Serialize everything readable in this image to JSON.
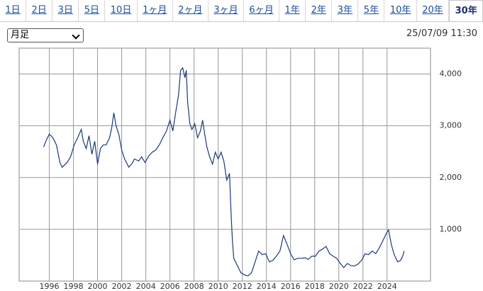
{
  "tabs": [
    "1日",
    "2日",
    "3日",
    "5日",
    "10日",
    "1ヶ月",
    "2ヶ月",
    "3ヶ月",
    "6ヶ月",
    "1年",
    "2年",
    "3年",
    "5年",
    "10年",
    "20年",
    "30年"
  ],
  "selected_tab": 15,
  "select": "月足",
  "timestamp": "25/07/09 11:30",
  "chart_data": {
    "type": "line",
    "color": "#1b3a7a",
    "grid": true,
    "xlim": [
      1993.5,
      2027.6
    ],
    "xticks": [
      1996,
      1998,
      2000,
      2002,
      2004,
      2006,
      2008,
      2010,
      2012,
      2014,
      2016,
      2018,
      2020,
      2022,
      2024
    ],
    "ylim": [
      0,
      4500
    ],
    "yticks": [
      {
        "value": 1000,
        "label": "1,000"
      },
      {
        "value": 2000,
        "label": "2,000"
      },
      {
        "value": 3000,
        "label": "3,000"
      },
      {
        "value": 4000,
        "label": "4,000"
      }
    ],
    "x": [
      1995.53,
      1995.71,
      1996,
      1996.29,
      1996.59,
      1996.88,
      1997.06,
      1997.47,
      1997.76,
      1998.06,
      1998.35,
      1998.65,
      1998.82,
      1999.06,
      1999.29,
      1999.53,
      1999.76,
      2000,
      2000.24,
      2000.47,
      2000.71,
      2001,
      2001.18,
      2001.35,
      2001.53,
      2001.76,
      2002,
      2002.24,
      2002.59,
      2002.82,
      2003.06,
      2003.41,
      2003.65,
      2003.94,
      2004.24,
      2004.53,
      2004.82,
      2005.12,
      2005.41,
      2005.71,
      2006,
      2006.24,
      2006.47,
      2006.71,
      2006.88,
      2007.06,
      2007.24,
      2007.35,
      2007.47,
      2007.65,
      2007.82,
      2008.06,
      2008.29,
      2008.53,
      2008.71,
      2008.88,
      2009.06,
      2009.29,
      2009.53,
      2009.76,
      2010,
      2010.24,
      2010.47,
      2010.71,
      2010.94,
      2011.06,
      2011.18,
      2011.29,
      2011.59,
      2011.88,
      2012.18,
      2012.47,
      2012.76,
      2013.06,
      2013.35,
      2013.65,
      2013.94,
      2014.24,
      2014.53,
      2014.82,
      2015.12,
      2015.41,
      2015.71,
      2016,
      2016.29,
      2016.59,
      2016.88,
      2017.18,
      2017.47,
      2017.76,
      2018.06,
      2018.35,
      2018.65,
      2018.94,
      2019.24,
      2019.53,
      2019.82,
      2020.12,
      2020.41,
      2020.71,
      2021,
      2021.29,
      2021.59,
      2021.88,
      2022.18,
      2022.47,
      2022.76,
      2023.06,
      2023.35,
      2023.65,
      2023.94,
      2024.12,
      2024.35,
      2024.59,
      2024.88,
      2025.12,
      2025.29,
      2025.41
    ],
    "values": [
      2590,
      2700,
      2840,
      2770,
      2630,
      2290,
      2200,
      2290,
      2400,
      2630,
      2770,
      2930,
      2700,
      2560,
      2810,
      2450,
      2700,
      2260,
      2560,
      2630,
      2630,
      2770,
      2970,
      3250,
      3000,
      2840,
      2530,
      2360,
      2200,
      2260,
      2360,
      2320,
      2400,
      2290,
      2420,
      2490,
      2530,
      2630,
      2770,
      2900,
      3110,
      2900,
      3250,
      3590,
      4070,
      4120,
      3930,
      4070,
      3450,
      3040,
      2930,
      3040,
      2770,
      2900,
      3110,
      2840,
      2590,
      2400,
      2260,
      2490,
      2360,
      2490,
      2320,
      1950,
      2080,
      1330,
      780,
      440,
      300,
      160,
      120,
      100,
      160,
      370,
      580,
      510,
      530,
      370,
      400,
      480,
      580,
      880,
      710,
      530,
      410,
      440,
      440,
      450,
      420,
      480,
      480,
      580,
      620,
      670,
      530,
      480,
      440,
      340,
      260,
      340,
      300,
      290,
      330,
      400,
      530,
      510,
      580,
      530,
      640,
      780,
      920,
      990,
      710,
      510,
      370,
      400,
      480,
      580
    ]
  }
}
